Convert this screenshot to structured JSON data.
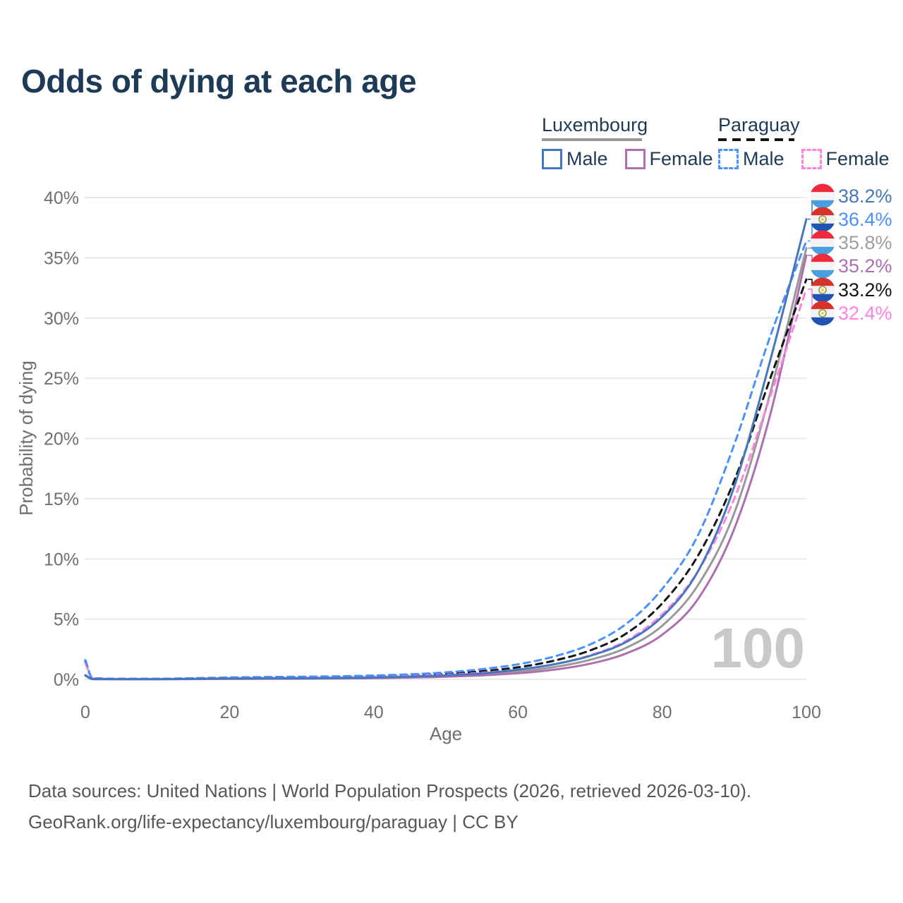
{
  "title": "Odds of dying at each age",
  "watermark": "100",
  "footer": {
    "line1": "Data sources: United Nations | World Population Prospects (2026, retrieved 2026-03-10).",
    "line2": "GeoRank.org/life-expectancy/luxembourg/paraguay | CC BY"
  },
  "colors": {
    "title_text": "#1d3a56",
    "axis_text": "#6f6f6f",
    "gridline": "#e9e9e9",
    "watermark": "#c9c9c9",
    "luxembourg_male": "#4577c0",
    "luxembourg_female": "#ad6fb0",
    "luxembourg_total": "#999999",
    "paraguay_male": "#4a90fe",
    "paraguay_female": "#ff82df",
    "paraguay_total": "#141414"
  },
  "flags": {
    "luxembourg": {
      "stripes": [
        "#ee2a3c",
        "#f4f4f4",
        "#4a9fe0"
      ],
      "emblem": false
    },
    "paraguay": {
      "stripes": [
        "#d7332a",
        "#f2f2f2",
        "#2053b4"
      ],
      "emblem": true,
      "emblem_ring": "#8a9a45",
      "emblem_fill": "#fdf6d8",
      "emblem_dot": "#e3c04b"
    }
  },
  "legend": {
    "groups": [
      {
        "name": "Luxembourg",
        "id": "luxembourg",
        "line": {
          "color": "#999999",
          "dashed": false
        },
        "items": [
          {
            "label": "Male",
            "color": "#4577c0",
            "dashed": false
          },
          {
            "label": "Female",
            "color": "#ad6fb0",
            "dashed": false
          }
        ]
      },
      {
        "name": "Paraguay",
        "id": "paraguay",
        "line": {
          "color": "#141414",
          "dashed": true
        },
        "items": [
          {
            "label": "Male",
            "color": "#4a90fe",
            "dashed": true
          },
          {
            "label": "Female",
            "color": "#ff82df",
            "dashed": true
          }
        ]
      }
    ]
  },
  "chart_data": {
    "type": "line",
    "title": "Odds of dying at each age",
    "xlabel": "Age",
    "ylabel": "Probability of dying",
    "xlim": [
      0,
      100
    ],
    "ylim_pct": [
      0,
      40
    ],
    "grid": true,
    "x_ticks": [
      0,
      20,
      40,
      60,
      80,
      100
    ],
    "y_ticks": [
      {
        "value": 0,
        "label": "0%"
      },
      {
        "value": 5,
        "label": "5%"
      },
      {
        "value": 10,
        "label": "10%"
      },
      {
        "value": 15,
        "label": "15%"
      },
      {
        "value": 20,
        "label": "20%"
      },
      {
        "value": 25,
        "label": "25%"
      },
      {
        "value": 30,
        "label": "30%"
      },
      {
        "value": 35,
        "label": "35%"
      },
      {
        "value": 40,
        "label": "40%"
      }
    ],
    "ages": [
      0,
      1,
      5,
      10,
      15,
      20,
      25,
      30,
      35,
      40,
      45,
      50,
      55,
      60,
      65,
      70,
      75,
      80,
      85,
      90,
      95,
      100
    ],
    "series": [
      {
        "name": "Luxembourg Total",
        "id": "luxembourg-total",
        "country": "luxembourg",
        "color": "#999999",
        "dashed": false,
        "values_pct": [
          0.32,
          0.025,
          0.018,
          0.018,
          0.03,
          0.055,
          0.065,
          0.075,
          0.095,
          0.125,
          0.185,
          0.275,
          0.42,
          0.65,
          1.02,
          1.62,
          2.62,
          4.45,
          7.85,
          13.8,
          23.8,
          35.8
        ]
      },
      {
        "name": "Luxembourg Female",
        "id": "luxembourg-female",
        "country": "luxembourg",
        "color": "#ad6fb0",
        "dashed": false,
        "values_pct": [
          0.3,
          0.02,
          0.015,
          0.015,
          0.025,
          0.04,
          0.05,
          0.06,
          0.08,
          0.1,
          0.15,
          0.22,
          0.33,
          0.51,
          0.8,
          1.3,
          2.15,
          3.7,
          6.7,
          12.5,
          22.0,
          35.2
        ]
      },
      {
        "name": "Paraguay Total",
        "id": "paraguay-total",
        "country": "paraguay",
        "color": "#141414",
        "dashed": true,
        "values_pct": [
          1.5,
          0.09,
          0.045,
          0.045,
          0.08,
          0.12,
          0.15,
          0.17,
          0.2,
          0.26,
          0.34,
          0.47,
          0.68,
          1.0,
          1.55,
          2.4,
          3.8,
          6.3,
          10.3,
          16.5,
          25.0,
          33.2
        ]
      },
      {
        "name": "Paraguay Female",
        "id": "paraguay-female",
        "country": "paraguay",
        "color": "#ff82df",
        "dashed": true,
        "values_pct": [
          1.35,
          0.08,
          0.04,
          0.04,
          0.06,
          0.09,
          0.11,
          0.13,
          0.16,
          0.21,
          0.28,
          0.38,
          0.55,
          0.82,
          1.25,
          2.0,
          3.2,
          5.4,
          9.0,
          15.0,
          23.5,
          32.4
        ]
      },
      {
        "name": "Paraguay Male",
        "id": "paraguay-male",
        "country": "paraguay",
        "color": "#4a90fe",
        "dashed": true,
        "values_pct": [
          1.6,
          0.1,
          0.05,
          0.05,
          0.1,
          0.16,
          0.2,
          0.22,
          0.26,
          0.32,
          0.42,
          0.58,
          0.85,
          1.25,
          1.9,
          2.9,
          4.6,
          7.5,
          12.0,
          19.5,
          28.5,
          36.4
        ]
      },
      {
        "name": "Luxembourg Male",
        "id": "luxembourg-male",
        "country": "luxembourg",
        "color": "#4577c0",
        "dashed": false,
        "values_pct": [
          0.35,
          0.03,
          0.02,
          0.02,
          0.04,
          0.07,
          0.08,
          0.09,
          0.11,
          0.15,
          0.22,
          0.33,
          0.5,
          0.8,
          1.25,
          1.95,
          3.1,
          5.2,
          9.0,
          16.0,
          26.5,
          38.2
        ]
      }
    ],
    "end_labels": [
      {
        "series": "Luxembourg Male",
        "id": "luxembourg-male",
        "flag": "luxembourg",
        "value": "38.2%",
        "value_pct": 38.2,
        "color": "#4577c0"
      },
      {
        "series": "Paraguay Male",
        "id": "paraguay-male",
        "flag": "paraguay",
        "value": "36.4%",
        "value_pct": 36.4,
        "color": "#4a90fe"
      },
      {
        "series": "Luxembourg Total",
        "id": "luxembourg-total",
        "flag": "luxembourg",
        "value": "35.8%",
        "value_pct": 35.8,
        "color": "#9e9e9e"
      },
      {
        "series": "Luxembourg Female",
        "id": "luxembourg-female",
        "flag": "luxembourg",
        "value": "35.2%",
        "value_pct": 35.2,
        "color": "#ad6fb0"
      },
      {
        "series": "Paraguay Total",
        "id": "paraguay-total",
        "flag": "paraguay",
        "value": "33.2%",
        "value_pct": 33.2,
        "color": "#141414"
      },
      {
        "series": "Paraguay Female",
        "id": "paraguay-female",
        "flag": "paraguay",
        "value": "32.4%",
        "value_pct": 32.4,
        "color": "#ff82df"
      }
    ]
  }
}
